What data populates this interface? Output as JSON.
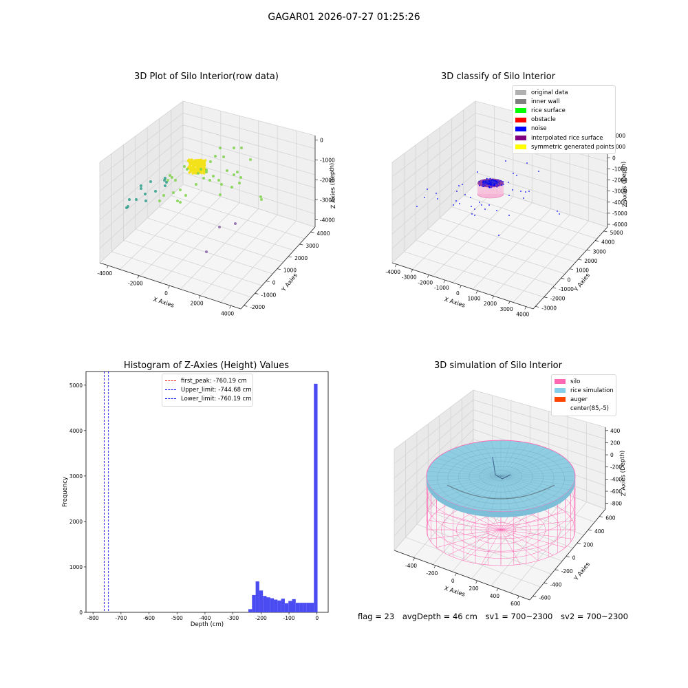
{
  "figure_title": "GAGAR01 2026-07-27 01:25:26",
  "status": {
    "flag": "flag = 23",
    "avg_depth": "avgDepth = 46 cm",
    "sv1": "sv1 = 700~2300",
    "sv2": "sv2 = 700~2300"
  },
  "chart_data": [
    {
      "type": "scatter",
      "title": "3D Plot of Silo Interior(row data)",
      "xlabel": "X Axies",
      "ylabel": "Y Axies",
      "zlabel": "Z Axies (Depth)",
      "x_ticks": [
        "-4000",
        "-2000",
        "0",
        "2000",
        "4000"
      ],
      "y_ticks": [
        "-2000",
        "-1000",
        "0",
        "1000",
        "2000",
        "3000",
        "4000"
      ],
      "z_ticks": [
        "0",
        "-1000",
        "-2000",
        "-3000",
        "-4000"
      ],
      "colors": {
        "cluster": "#f3e21a",
        "mid": "#7fd24a",
        "far": "#2e9d8a",
        "low": "#7b4f9d"
      }
    },
    {
      "type": "scatter",
      "title": "3D classify of Silo Interior",
      "xlabel": "X Axies",
      "ylabel": "Y Axies",
      "zlabel": "Z Axies (Depth)",
      "x_ticks": [
        "-4000",
        "-3000",
        "-2000",
        "-1000",
        "0",
        "1000",
        "2000",
        "3000",
        "4000"
      ],
      "y_ticks": [
        "-3000",
        "-2000",
        "-1000",
        "0",
        "1000",
        "2000",
        "3000",
        "4000",
        "5000"
      ],
      "z_ticks": [
        "2000",
        "1000",
        "0",
        "-1000",
        "-2000",
        "-3000",
        "-4000",
        "-5000",
        "-6000"
      ],
      "legend": [
        {
          "label": "original data",
          "color": "#b0b0b0"
        },
        {
          "label": "inner wall",
          "color": "#808080"
        },
        {
          "label": "rice surface",
          "color": "#00ff00"
        },
        {
          "label": "obstacle",
          "color": "#ff0000"
        },
        {
          "label": "noise",
          "color": "#0000ff"
        },
        {
          "label": "interpolated rice surface",
          "color": "#800080"
        },
        {
          "label": "symmetric generated points",
          "color": "#ffff00"
        }
      ]
    },
    {
      "type": "bar",
      "title": "Histogram of Z-Axies (Height) Values",
      "xlabel": "Depth (cm)",
      "ylabel": "Frequency",
      "xlim": [
        -825,
        40
      ],
      "ylim": [
        0,
        5300
      ],
      "x_ticks": [
        -800,
        -700,
        -600,
        -500,
        -400,
        -300,
        -200,
        -100,
        0
      ],
      "y_ticks": [
        0,
        1000,
        2000,
        3000,
        4000,
        5000
      ],
      "bar_color": "#4b4bf2",
      "bins": [
        {
          "x0": -245,
          "x1": -232,
          "count": 70
        },
        {
          "x0": -232,
          "x1": -219,
          "count": 380
        },
        {
          "x0": -219,
          "x1": -206,
          "count": 680
        },
        {
          "x0": -206,
          "x1": -193,
          "count": 480
        },
        {
          "x0": -193,
          "x1": -180,
          "count": 360
        },
        {
          "x0": -180,
          "x1": -167,
          "count": 330
        },
        {
          "x0": -167,
          "x1": -154,
          "count": 310
        },
        {
          "x0": -154,
          "x1": -141,
          "count": 280
        },
        {
          "x0": -141,
          "x1": -128,
          "count": 260
        },
        {
          "x0": -128,
          "x1": -115,
          "count": 300
        },
        {
          "x0": -115,
          "x1": -102,
          "count": 200
        },
        {
          "x0": -102,
          "x1": -89,
          "count": 250
        },
        {
          "x0": -89,
          "x1": -76,
          "count": 290
        },
        {
          "x0": -76,
          "x1": -63,
          "count": 210
        },
        {
          "x0": -63,
          "x1": -50,
          "count": 210
        },
        {
          "x0": -50,
          "x1": -37,
          "count": 210
        },
        {
          "x0": -37,
          "x1": -24,
          "count": 210
        },
        {
          "x0": -24,
          "x1": -11,
          "count": 210
        },
        {
          "x0": -11,
          "x1": 2,
          "count": 5030
        }
      ],
      "vlines": [
        {
          "label": "first_peak: -760.19 cm",
          "x": -760.19,
          "color": "#ff0000"
        },
        {
          "label": "Upper_limit: -744.68 cm",
          "x": -744.68,
          "color": "#0000ff"
        },
        {
          "label": "Lower_limit: -760.19 cm",
          "x": -760.19,
          "color": "#0000ff"
        }
      ]
    },
    {
      "type": "surface",
      "title": "3D simulation of Silo Interior",
      "xlabel": "X Axies",
      "ylabel": "Y Axies",
      "zlabel": "Z Axies (Depth)",
      "x_ticks": [
        "-400",
        "-200",
        "0",
        "200",
        "400",
        "600"
      ],
      "y_ticks": [
        "-600",
        "-400",
        "-200",
        "0",
        "200",
        "400",
        "600"
      ],
      "z_ticks": [
        "400",
        "200",
        "0",
        "-200",
        "-400",
        "-600",
        "-800"
      ],
      "legend": [
        {
          "label": "silo",
          "color": "#ff69b4"
        },
        {
          "label": "rice simulation",
          "color": "#87ceeb"
        },
        {
          "label": "auger",
          "color": "#ff4500"
        },
        {
          "label": "center(85,-5)",
          "color": "#ffffff"
        }
      ]
    }
  ]
}
